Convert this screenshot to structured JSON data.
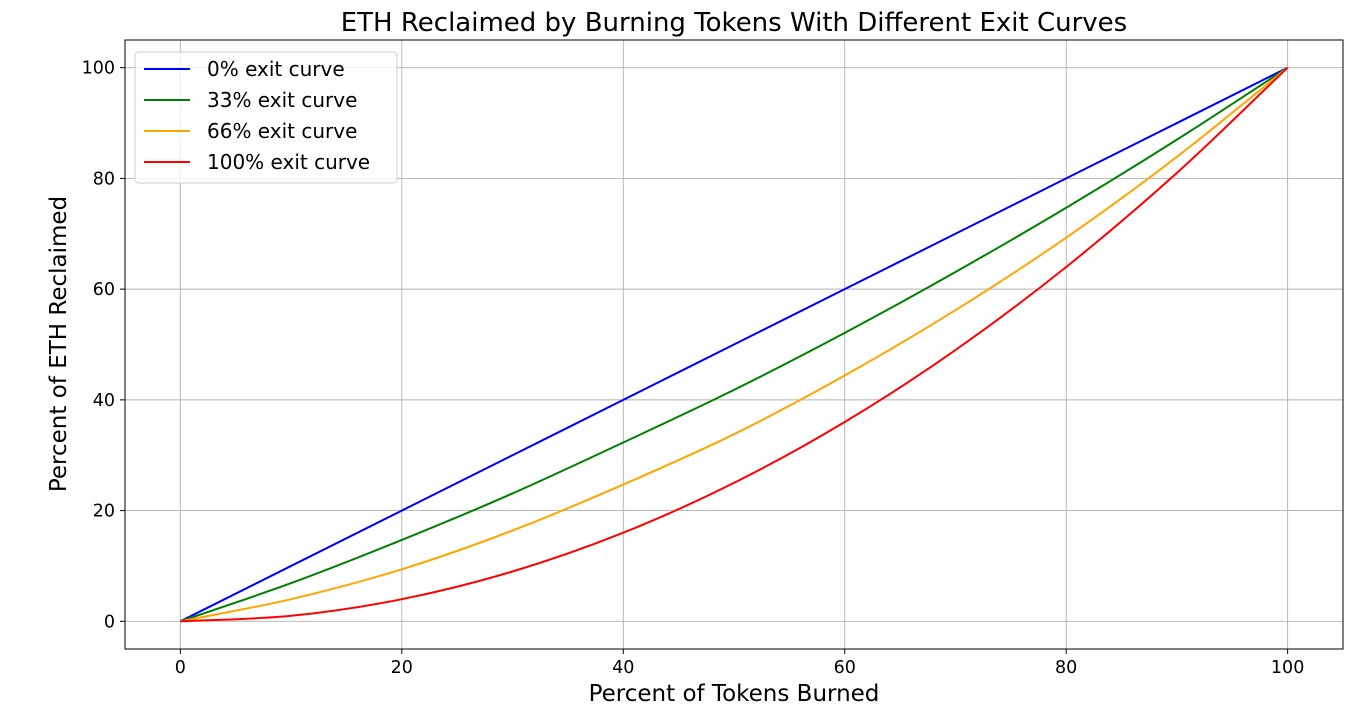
{
  "chart_data": {
    "type": "line",
    "title": "ETH Reclaimed by Burning Tokens With Different Exit Curves",
    "xlabel": "Percent of Tokens Burned",
    "ylabel": "Percent of ETH Reclaimed",
    "xlim": [
      -5,
      105
    ],
    "ylim": [
      -5,
      105
    ],
    "xticks": [
      0,
      20,
      40,
      60,
      80,
      100
    ],
    "yticks": [
      0,
      20,
      40,
      60,
      80,
      100
    ],
    "grid": true,
    "legend_position": "upper-left",
    "x": [
      0,
      10,
      20,
      30,
      40,
      50,
      60,
      70,
      80,
      90,
      100
    ],
    "series": [
      {
        "name": "0% exit curve",
        "color": "#0000ff",
        "values": [
          0,
          10,
          20,
          30,
          40,
          50,
          60,
          70,
          80,
          90,
          100
        ]
      },
      {
        "name": "33% exit curve",
        "color": "#008000",
        "values": [
          0,
          6.9,
          14.7,
          23.1,
          32.3,
          41.8,
          52.1,
          63.1,
          74.7,
          87.0,
          100
        ]
      },
      {
        "name": "66% exit curve",
        "color": "#ffa500",
        "values": [
          0,
          4.0,
          9.4,
          16.4,
          24.7,
          33.8,
          44.4,
          56.2,
          69.3,
          83.9,
          100
        ]
      },
      {
        "name": "100% exit curve",
        "color": "#ff0000",
        "values": [
          0,
          1,
          4,
          9,
          16,
          25,
          36,
          49,
          64,
          81,
          100
        ]
      }
    ]
  }
}
